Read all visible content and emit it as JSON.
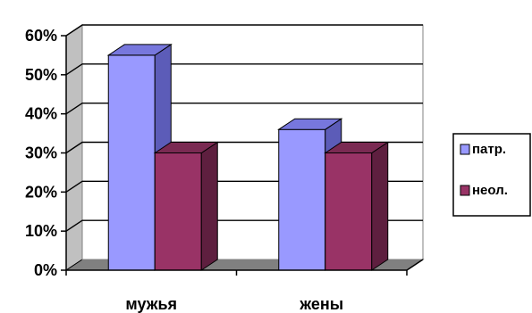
{
  "chart_data": {
    "type": "bar",
    "categories": [
      "мужья",
      "жены"
    ],
    "series": [
      {
        "name": "патр.",
        "values": [
          55,
          36
        ],
        "color": "#9999FF",
        "side_color": "#5C5CB8",
        "top_color": "#7777DD"
      },
      {
        "name": "неол.",
        "values": [
          30,
          30
        ],
        "color": "#993366",
        "side_color": "#5E1F3F",
        "top_color": "#7A2A52"
      }
    ],
    "ylim": [
      0,
      60
    ],
    "yticks": [
      "0%",
      "10%",
      "20%",
      "30%",
      "40%",
      "50%",
      "60%"
    ],
    "grid": true,
    "legend_position": "right",
    "wall_color": "#C0C0C0",
    "title": "",
    "xlabel": "",
    "ylabel": ""
  }
}
